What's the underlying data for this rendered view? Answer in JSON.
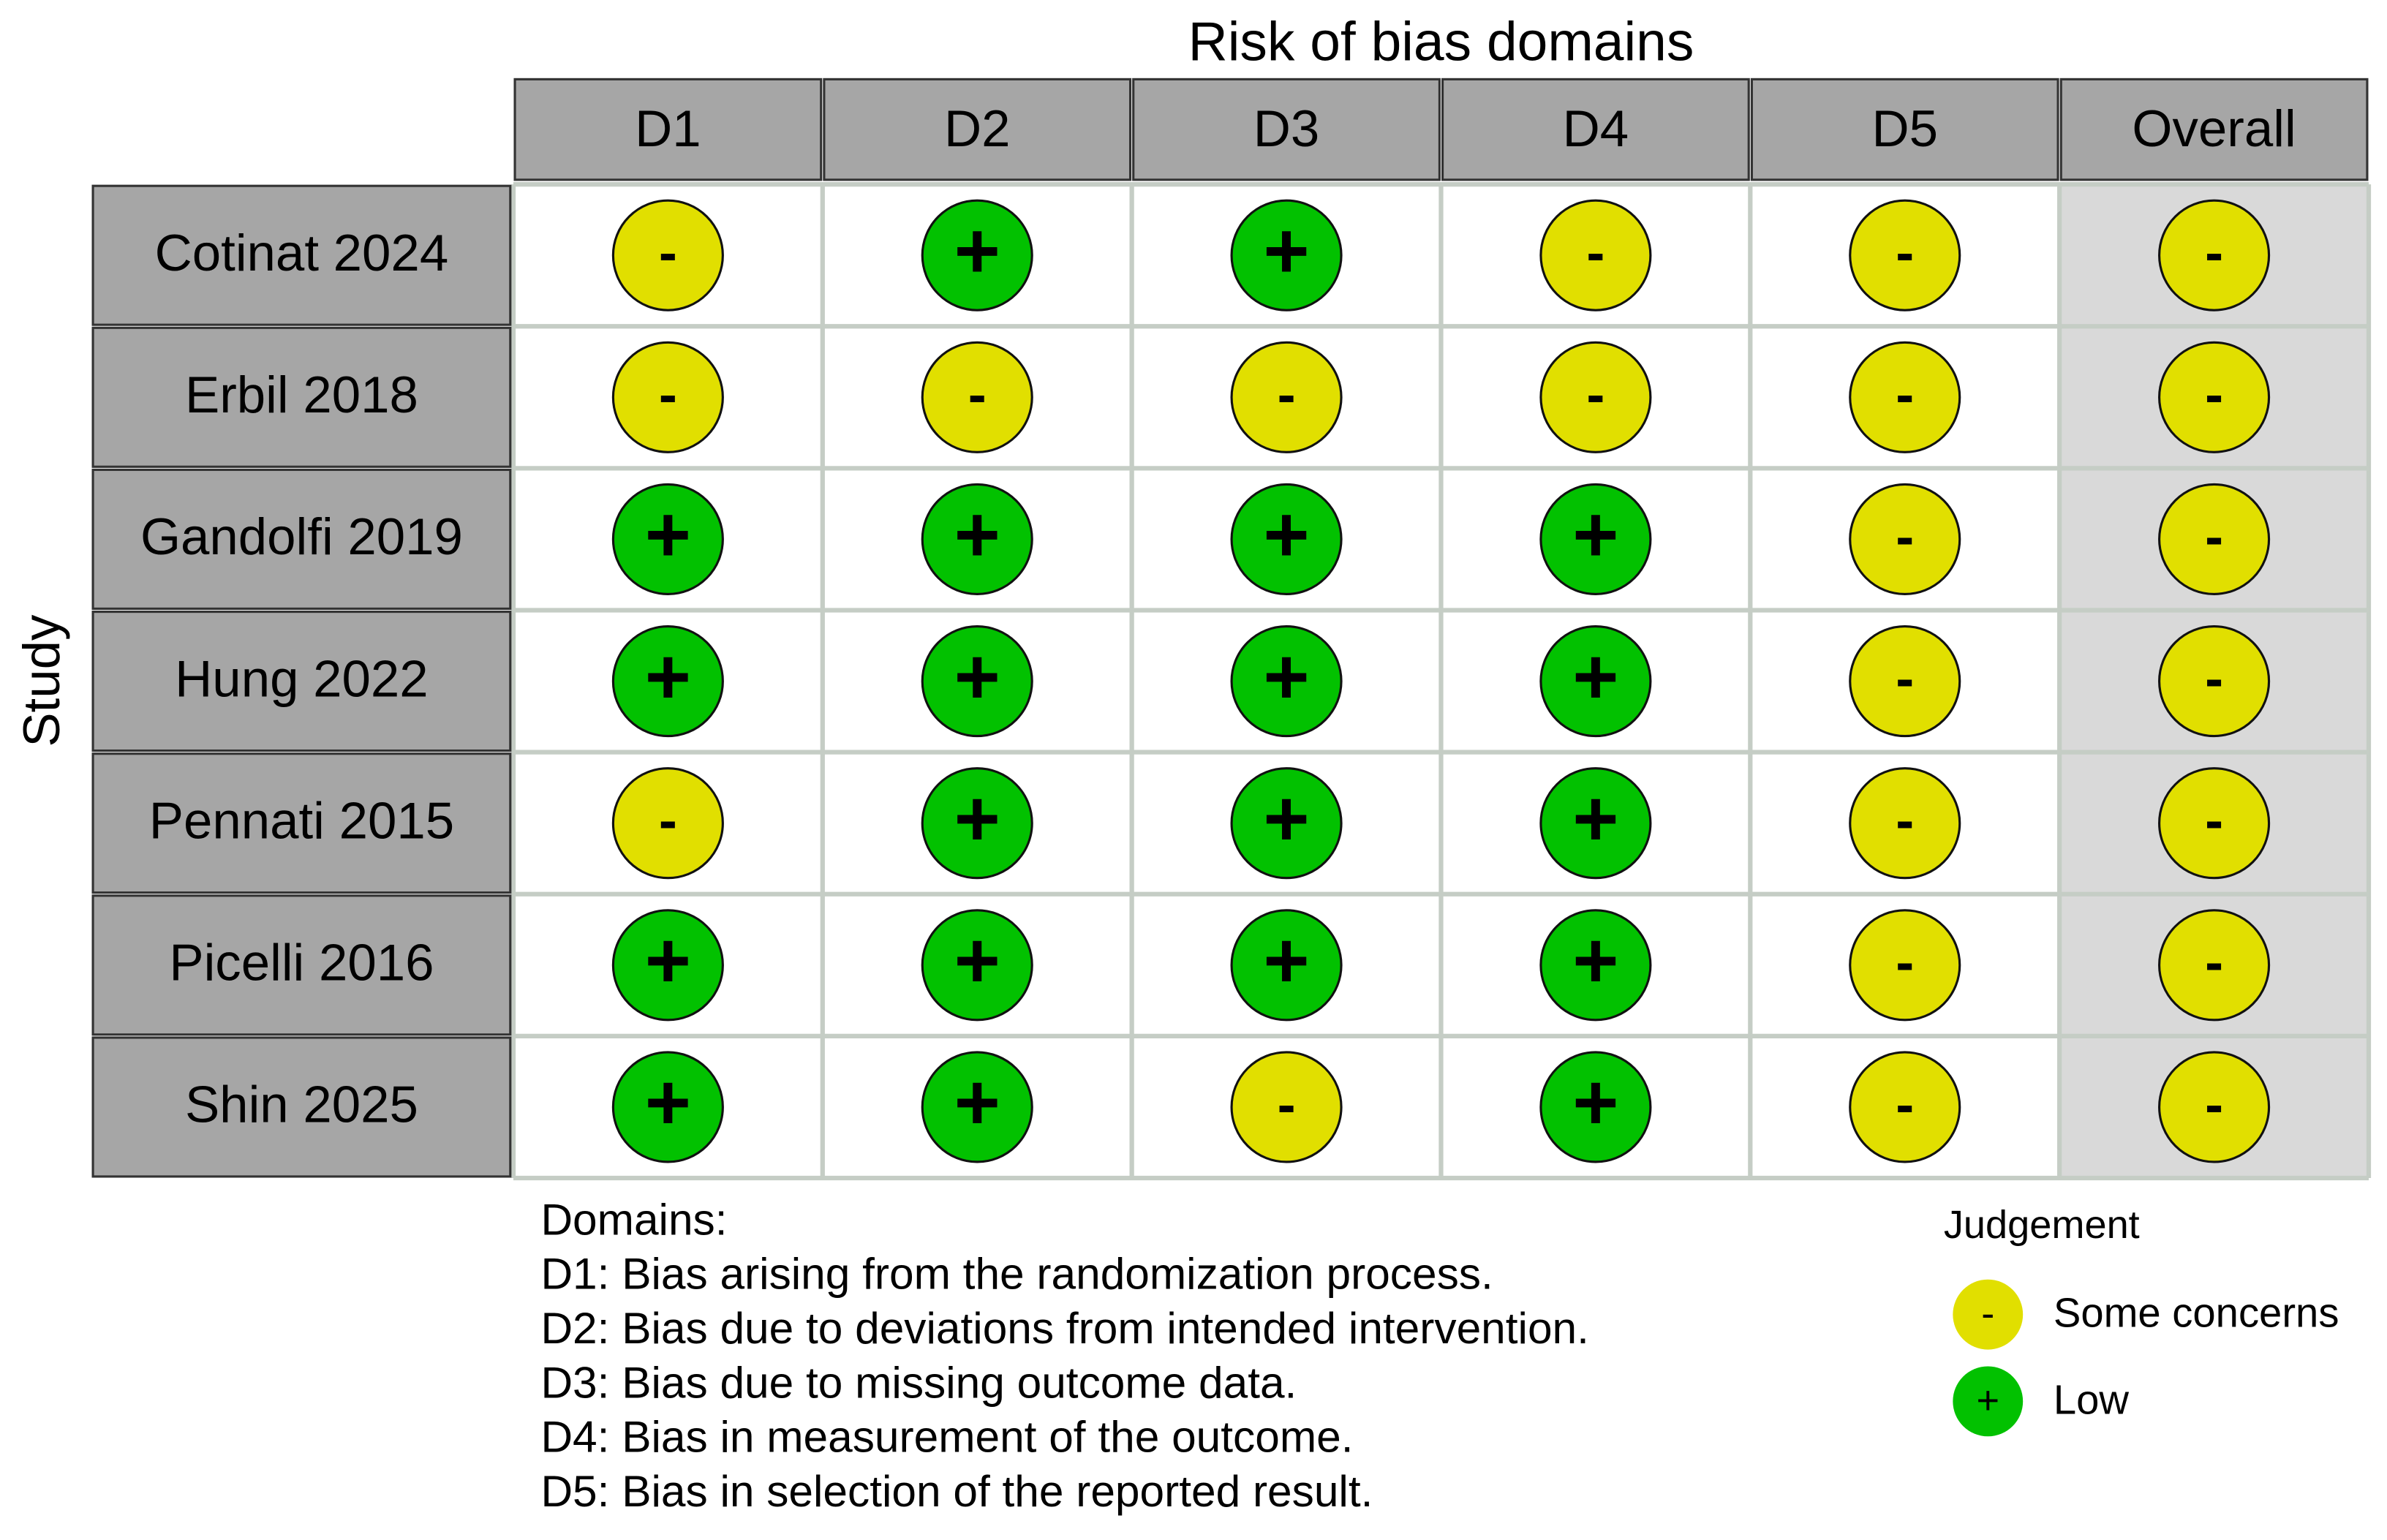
{
  "chart_data": {
    "type": "traffic-light",
    "title": "Risk of bias domains",
    "ylabel": "Study",
    "columns": [
      "D1",
      "D2",
      "D3",
      "D4",
      "D5",
      "Overall"
    ],
    "rows": [
      {
        "name": "Cotinat 2024",
        "judgements": [
          "-",
          "+",
          "+",
          "-",
          "-",
          "-"
        ]
      },
      {
        "name": "Erbil 2018",
        "judgements": [
          "-",
          "-",
          "-",
          "-",
          "-",
          "-"
        ]
      },
      {
        "name": "Gandolfi 2019",
        "judgements": [
          "+",
          "+",
          "+",
          "+",
          "-",
          "-"
        ]
      },
      {
        "name": "Hung 2022",
        "judgements": [
          "+",
          "+",
          "+",
          "+",
          "-",
          "-"
        ]
      },
      {
        "name": "Pennati 2015",
        "judgements": [
          "-",
          "+",
          "+",
          "+",
          "-",
          "-"
        ]
      },
      {
        "name": "Picelli 2016",
        "judgements": [
          "+",
          "+",
          "+",
          "+",
          "-",
          "-"
        ]
      },
      {
        "name": "Shin 2025",
        "judgements": [
          "+",
          "+",
          "-",
          "+",
          "-",
          "-"
        ]
      }
    ],
    "legend": {
      "title": "Judgement",
      "items": [
        {
          "symbol": "-",
          "label": "Some concerns",
          "color": "#e1df00"
        },
        {
          "symbol": "+",
          "label": "Low",
          "color": "#02c100"
        }
      ]
    },
    "notes": {
      "title": "Domains:",
      "lines": [
        "D1: Bias arising from the randomization process.",
        "D2: Bias due to deviations from intended intervention.",
        "D3: Bias due to missing outcome data.",
        "D4: Bias in measurement of the outcome.",
        "D5: Bias in selection of the reported result."
      ]
    }
  }
}
